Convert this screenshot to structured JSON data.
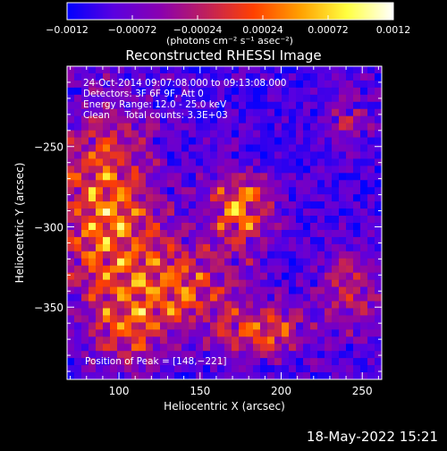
{
  "chart_data": {
    "type": "heatmap",
    "title": "Reconstructed RHESSI Image",
    "xlabel": "Heliocentric X (arcsec)",
    "ylabel": "Heliocentric Y (arcsec)",
    "xlim": [
      68,
      262
    ],
    "ylim": [
      -395,
      -200
    ],
    "x_ticks": [
      {
        "value": 100,
        "label": "100"
      },
      {
        "value": 150,
        "label": "150"
      },
      {
        "value": 200,
        "label": "200"
      },
      {
        "value": 250,
        "label": "250"
      }
    ],
    "y_ticks": [
      {
        "value": -250,
        "label": "−250"
      },
      {
        "value": -300,
        "label": "−300"
      },
      {
        "value": -350,
        "label": "−350"
      }
    ],
    "colorbar": {
      "range": [
        -0.0012,
        0.0012
      ],
      "ticks": [
        {
          "value": -0.0012,
          "label": "−0.0012"
        },
        {
          "value": -0.00072,
          "label": "−0.00072"
        },
        {
          "value": -0.00024,
          "label": "−0.00024"
        },
        {
          "value": 0.00024,
          "label": "0.00024"
        },
        {
          "value": 0.00072,
          "label": "0.00072"
        },
        {
          "value": 0.0012,
          "label": "0.0012"
        }
      ],
      "unit_label": "(photons cm⁻² s⁻¹ asec⁻²)",
      "colormap": [
        "#0000ff",
        "#5a00e0",
        "#8a00b0",
        "#c0205a",
        "#ff4000",
        "#ffa000",
        "#ffff40",
        "#ffffff"
      ]
    },
    "annotations": {
      "time_range": "24‑Oct‑2014 09:07:08.000 to 09:13:08.000",
      "detectors": "Detectors: 3F 6F 9F, Att 0",
      "energy": "Energy Range: 12.0 ‑ 25.0 keV",
      "method": "Clean     Total counts: 3.3E+03",
      "peak": "Position of Peak = [148,−221]"
    },
    "peak_position": {
      "x": 148,
      "y": -221
    },
    "footer_date": "18‑May‑2022 15:21"
  }
}
